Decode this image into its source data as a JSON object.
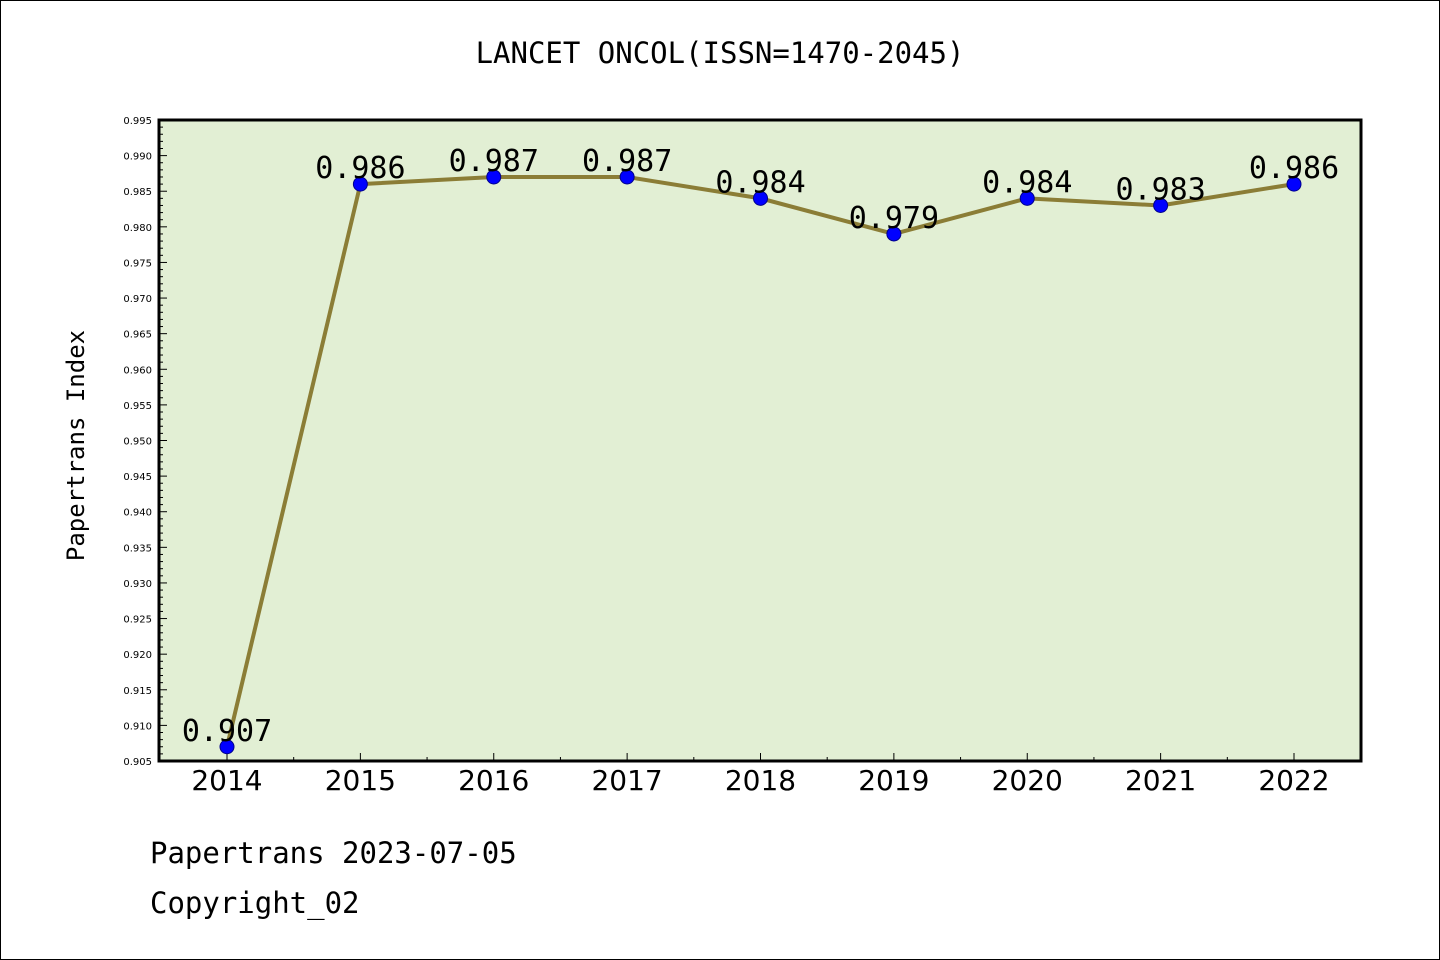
{
  "chart_data": {
    "type": "line",
    "title": "LANCET ONCOL(ISSN=1470-2045)",
    "xlabel": "",
    "ylabel": "Papertrans Index",
    "categories": [
      "2014",
      "2015",
      "2016",
      "2017",
      "2018",
      "2019",
      "2020",
      "2021",
      "2022"
    ],
    "series": [
      {
        "values": [
          0.907,
          0.986,
          0.987,
          0.987,
          0.984,
          0.979,
          0.984,
          0.983,
          0.986
        ],
        "data_labels": [
          "0.907",
          "0.986",
          "0.987",
          "0.987",
          "0.984",
          "0.979",
          "0.984",
          "0.983",
          "0.986"
        ]
      }
    ],
    "ylim": [
      0.905,
      0.995
    ],
    "yticks": [
      "0.905",
      "0.910",
      "0.915",
      "0.920",
      "0.925",
      "0.930",
      "0.935",
      "0.940",
      "0.945",
      "0.950",
      "0.955",
      "0.960",
      "0.965",
      "0.970",
      "0.975",
      "0.980",
      "0.985",
      "0.990",
      "0.995"
    ],
    "grid": false,
    "legend": "none"
  },
  "colors": {
    "plot_background": "#e2efd4",
    "line": "#8b7d36",
    "marker": "#0000ff",
    "axis": "#000000"
  },
  "footer": {
    "line1": "Papertrans 2023-07-05",
    "line2": "Copyright_02"
  }
}
